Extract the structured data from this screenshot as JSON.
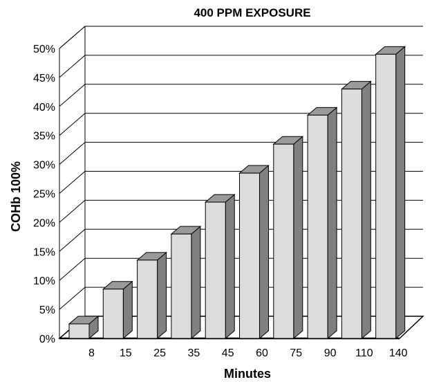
{
  "chart_data": {
    "type": "bar",
    "title": "400 PPM EXPOSURE",
    "xlabel": "Minutes",
    "ylabel": "COHb 100%",
    "categories": [
      "8",
      "15",
      "25",
      "35",
      "45",
      "60",
      "75",
      "90",
      "110",
      "140"
    ],
    "values": [
      2.5,
      8.5,
      13.5,
      18,
      23.5,
      28.5,
      33.5,
      38.5,
      43,
      49
    ],
    "ylim": [
      0,
      50
    ],
    "yticks": [
      "0%",
      "5%",
      "10%",
      "15%",
      "20%",
      "25%",
      "30%",
      "35%",
      "40%",
      "45%",
      "50%"
    ],
    "grid": true,
    "legend": "none",
    "colors": {
      "bar_front": "#dcdcdc",
      "bar_side": "#808080",
      "bar_top": "#9a9a9a",
      "grid": "#000000"
    }
  }
}
